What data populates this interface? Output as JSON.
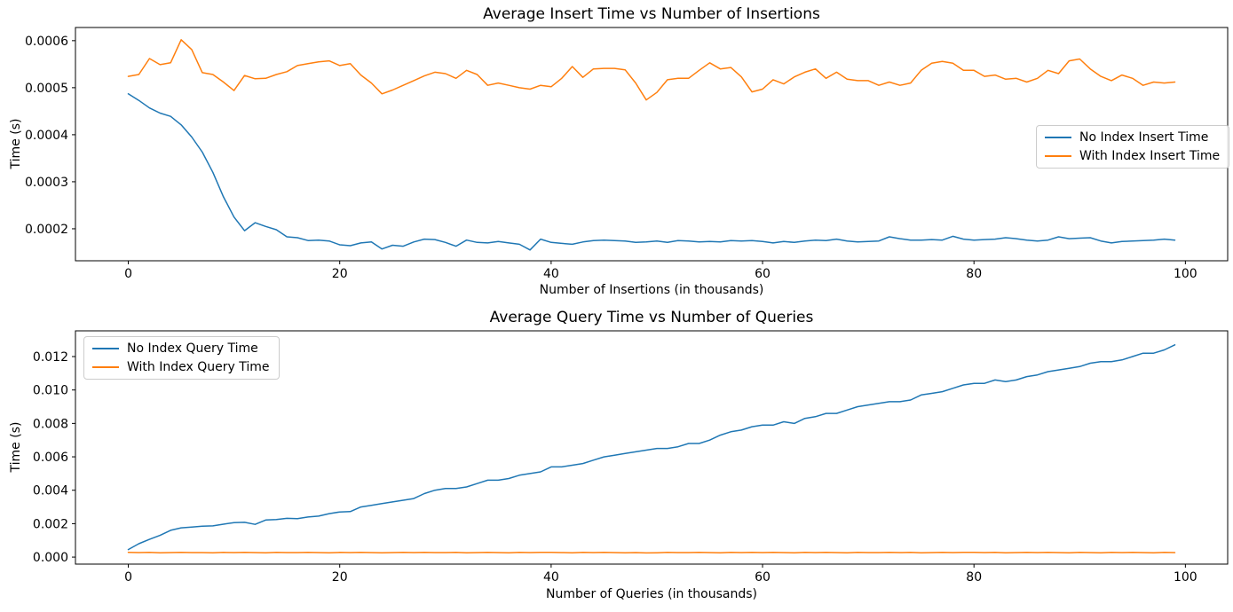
{
  "colors": {
    "series_blue": "#1f77b4",
    "series_orange": "#ff7f0e",
    "axis": "#000000",
    "legend_border": "#cccccc",
    "background": "#ffffff"
  },
  "chart_data": [
    {
      "type": "line",
      "title": "Average Insert Time vs Number of Insertions",
      "xlabel": "Number of Insertions (in thousands)",
      "ylabel": "Time (s)",
      "xlim": [
        -5,
        104
      ],
      "ylim": [
        0.000132,
        0.000628
      ],
      "xticks": [
        0,
        20,
        40,
        60,
        80,
        100
      ],
      "xtick_labels": [
        "0",
        "20",
        "40",
        "60",
        "80",
        "100"
      ],
      "yticks": [
        0.0002,
        0.0003,
        0.0004,
        0.0005,
        0.0006
      ],
      "ytick_labels": [
        "0.0002",
        "0.0003",
        "0.0004",
        "0.0005",
        "0.0006"
      ],
      "grid": false,
      "legend_position": "center right",
      "x": [
        0,
        1,
        2,
        3,
        4,
        5,
        6,
        7,
        8,
        9,
        10,
        11,
        12,
        13,
        14,
        15,
        16,
        17,
        18,
        19,
        20,
        21,
        22,
        23,
        24,
        25,
        26,
        27,
        28,
        29,
        30,
        31,
        32,
        33,
        34,
        35,
        36,
        37,
        38,
        39,
        40,
        41,
        42,
        43,
        44,
        45,
        46,
        47,
        48,
        49,
        50,
        51,
        52,
        53,
        54,
        55,
        56,
        57,
        58,
        59,
        60,
        61,
        62,
        63,
        64,
        65,
        66,
        67,
        68,
        69,
        70,
        71,
        72,
        73,
        74,
        75,
        76,
        77,
        78,
        79,
        80,
        81,
        82,
        83,
        84,
        85,
        86,
        87,
        88,
        89,
        90,
        91,
        92,
        93,
        94,
        95,
        96,
        97,
        98,
        99
      ],
      "series": [
        {
          "name": "No Index Insert Time",
          "color": "#1f77b4",
          "values": [
            0.000487,
            0.000473,
            0.000457,
            0.000446,
            0.000439,
            0.000421,
            0.000395,
            0.000363,
            0.00032,
            0.000268,
            0.000225,
            0.000196,
            0.000213,
            0.000205,
            0.000198,
            0.000183,
            0.000181,
            0.000175,
            0.000176,
            0.000174,
            0.000166,
            0.000164,
            0.00017,
            0.000172,
            0.000157,
            0.000165,
            0.000163,
            0.000172,
            0.000178,
            0.000177,
            0.000171,
            0.000163,
            0.000176,
            0.000171,
            0.00017,
            0.000173,
            0.00017,
            0.000167,
            0.000155,
            0.000178,
            0.000171,
            0.000169,
            0.000167,
            0.000172,
            0.000175,
            0.000176,
            0.000175,
            0.000174,
            0.000171,
            0.000172,
            0.000174,
            0.000171,
            0.000175,
            0.000174,
            0.000172,
            0.000173,
            0.000172,
            0.000175,
            0.000174,
            0.000175,
            0.000173,
            0.00017,
            0.000173,
            0.000171,
            0.000174,
            0.000176,
            0.000175,
            0.000178,
            0.000174,
            0.000172,
            0.000173,
            0.000174,
            0.000183,
            0.000179,
            0.000176,
            0.000176,
            0.000177,
            0.000176,
            0.000184,
            0.000178,
            0.000176,
            0.000177,
            0.000178,
            0.000181,
            0.000179,
            0.000176,
            0.000174,
            0.000176,
            0.000183,
            0.000179,
            0.00018,
            0.000181,
            0.000174,
            0.00017,
            0.000173,
            0.000174,
            0.000175,
            0.000176,
            0.000178,
            0.000176
          ]
        },
        {
          "name": "With Index Insert Time",
          "color": "#ff7f0e",
          "values": [
            0.000524,
            0.000528,
            0.000562,
            0.000549,
            0.000553,
            0.000602,
            0.000581,
            0.000532,
            0.000528,
            0.000512,
            0.000494,
            0.000526,
            0.000519,
            0.00052,
            0.000528,
            0.000534,
            0.000547,
            0.000551,
            0.000555,
            0.000557,
            0.000547,
            0.000551,
            0.000527,
            0.00051,
            0.000487,
            0.000495,
            0.000505,
            0.000515,
            0.000525,
            0.000533,
            0.00053,
            0.00052,
            0.000537,
            0.000528,
            0.000505,
            0.00051,
            0.000505,
            0.0005,
            0.000497,
            0.000505,
            0.000502,
            0.00052,
            0.000545,
            0.000522,
            0.00054,
            0.000541,
            0.000541,
            0.000538,
            0.00051,
            0.000474,
            0.00049,
            0.000517,
            0.00052,
            0.00052,
            0.000537,
            0.000553,
            0.00054,
            0.000543,
            0.000523,
            0.000491,
            0.000497,
            0.000517,
            0.000508,
            0.000523,
            0.000533,
            0.00054,
            0.00052,
            0.000533,
            0.000518,
            0.000515,
            0.000515,
            0.000505,
            0.000512,
            0.000505,
            0.00051,
            0.000537,
            0.000552,
            0.000556,
            0.000552,
            0.000537,
            0.000537,
            0.000524,
            0.000527,
            0.000518,
            0.00052,
            0.000512,
            0.00052,
            0.000537,
            0.00053,
            0.000557,
            0.000561,
            0.00054,
            0.000524,
            0.000515,
            0.000527,
            0.00052,
            0.000505,
            0.000512,
            0.00051,
            0.000512
          ]
        }
      ]
    },
    {
      "type": "line",
      "title": "Average Query Time vs Number of Queries",
      "xlabel": "Number of Queries (in thousands)",
      "ylabel": "Time (s)",
      "xlim": [
        -5,
        104
      ],
      "ylim": [
        -0.00042,
        0.01354
      ],
      "xticks": [
        0,
        20,
        40,
        60,
        80,
        100
      ],
      "xtick_labels": [
        "0",
        "20",
        "40",
        "60",
        "80",
        "100"
      ],
      "yticks": [
        0.0,
        0.002,
        0.004,
        0.006,
        0.008,
        0.01,
        0.012
      ],
      "ytick_labels": [
        "0.000",
        "0.002",
        "0.004",
        "0.006",
        "0.008",
        "0.010",
        "0.012"
      ],
      "grid": false,
      "legend_position": "upper left",
      "x": [
        0,
        1,
        2,
        3,
        4,
        5,
        6,
        7,
        8,
        9,
        10,
        11,
        12,
        13,
        14,
        15,
        16,
        17,
        18,
        19,
        20,
        21,
        22,
        23,
        24,
        25,
        26,
        27,
        28,
        29,
        30,
        31,
        32,
        33,
        34,
        35,
        36,
        37,
        38,
        39,
        40,
        41,
        42,
        43,
        44,
        45,
        46,
        47,
        48,
        49,
        50,
        51,
        52,
        53,
        54,
        55,
        56,
        57,
        58,
        59,
        60,
        61,
        62,
        63,
        64,
        65,
        66,
        67,
        68,
        69,
        70,
        71,
        72,
        73,
        74,
        75,
        76,
        77,
        78,
        79,
        80,
        81,
        82,
        83,
        84,
        85,
        86,
        87,
        88,
        89,
        90,
        91,
        92,
        93,
        94,
        95,
        96,
        97,
        98,
        99
      ],
      "series": [
        {
          "name": "No Index Query Time",
          "color": "#1f77b4",
          "values": [
            0.00045,
            0.0008,
            0.00106,
            0.0013,
            0.0016,
            0.00175,
            0.0018,
            0.00185,
            0.00187,
            0.00197,
            0.00206,
            0.00208,
            0.00196,
            0.00222,
            0.00225,
            0.00232,
            0.0023,
            0.0024,
            0.00245,
            0.0026,
            0.0027,
            0.00272,
            0.003,
            0.0031,
            0.0032,
            0.0033,
            0.0034,
            0.0035,
            0.0038,
            0.004,
            0.0041,
            0.0041,
            0.0042,
            0.0044,
            0.0046,
            0.0046,
            0.0047,
            0.0049,
            0.005,
            0.0051,
            0.0054,
            0.0054,
            0.0055,
            0.0056,
            0.0058,
            0.006,
            0.0061,
            0.0062,
            0.0063,
            0.0064,
            0.0065,
            0.0065,
            0.0066,
            0.0068,
            0.0068,
            0.007,
            0.0073,
            0.0075,
            0.0076,
            0.0078,
            0.0079,
            0.0079,
            0.0081,
            0.008,
            0.0083,
            0.0084,
            0.0086,
            0.0086,
            0.0088,
            0.009,
            0.0091,
            0.0092,
            0.0093,
            0.0093,
            0.0094,
            0.0097,
            0.0098,
            0.0099,
            0.0101,
            0.0103,
            0.0104,
            0.0104,
            0.0106,
            0.0105,
            0.0106,
            0.0108,
            0.0109,
            0.0111,
            0.0112,
            0.0113,
            0.0114,
            0.0116,
            0.0117,
            0.0117,
            0.0118,
            0.012,
            0.0122,
            0.0122,
            0.0124,
            0.0127
          ]
        },
        {
          "name": "With Index Query Time",
          "color": "#ff7f0e",
          "values": [
            0.00028,
            0.00027,
            0.00028,
            0.00026,
            0.00027,
            0.00028,
            0.00027,
            0.00027,
            0.00026,
            0.00028,
            0.00027,
            0.00028,
            0.00027,
            0.00026,
            0.00028,
            0.00027,
            0.00027,
            0.00028,
            0.00027,
            0.00026,
            0.00028,
            0.00027,
            0.00028,
            0.00027,
            0.00026,
            0.00027,
            0.00028,
            0.00027,
            0.00028,
            0.00027,
            0.00027,
            0.00028,
            0.00026,
            0.00027,
            0.00028,
            0.00027,
            0.00026,
            0.00028,
            0.00027,
            0.00028,
            0.00028,
            0.00027,
            0.00026,
            0.00028,
            0.00027,
            0.00028,
            0.00027,
            0.00026,
            0.00027,
            0.00025,
            0.00026,
            0.00028,
            0.00027,
            0.00027,
            0.00028,
            0.00027,
            0.00026,
            0.00028,
            0.00027,
            0.00028,
            0.00027,
            0.00028,
            0.00027,
            0.00026,
            0.00028,
            0.00027,
            0.00028,
            0.00027,
            0.00026,
            0.00028,
            0.00027,
            0.00027,
            0.00028,
            0.00027,
            0.00028,
            0.00026,
            0.00027,
            0.00028,
            0.00027,
            0.00028,
            0.00028,
            0.00027,
            0.00028,
            0.00026,
            0.00027,
            0.00028,
            0.00027,
            0.00028,
            0.00027,
            0.00026,
            0.00028,
            0.00027,
            0.00026,
            0.00028,
            0.00027,
            0.00028,
            0.00027,
            0.00026,
            0.00028,
            0.00027
          ]
        }
      ]
    }
  ]
}
